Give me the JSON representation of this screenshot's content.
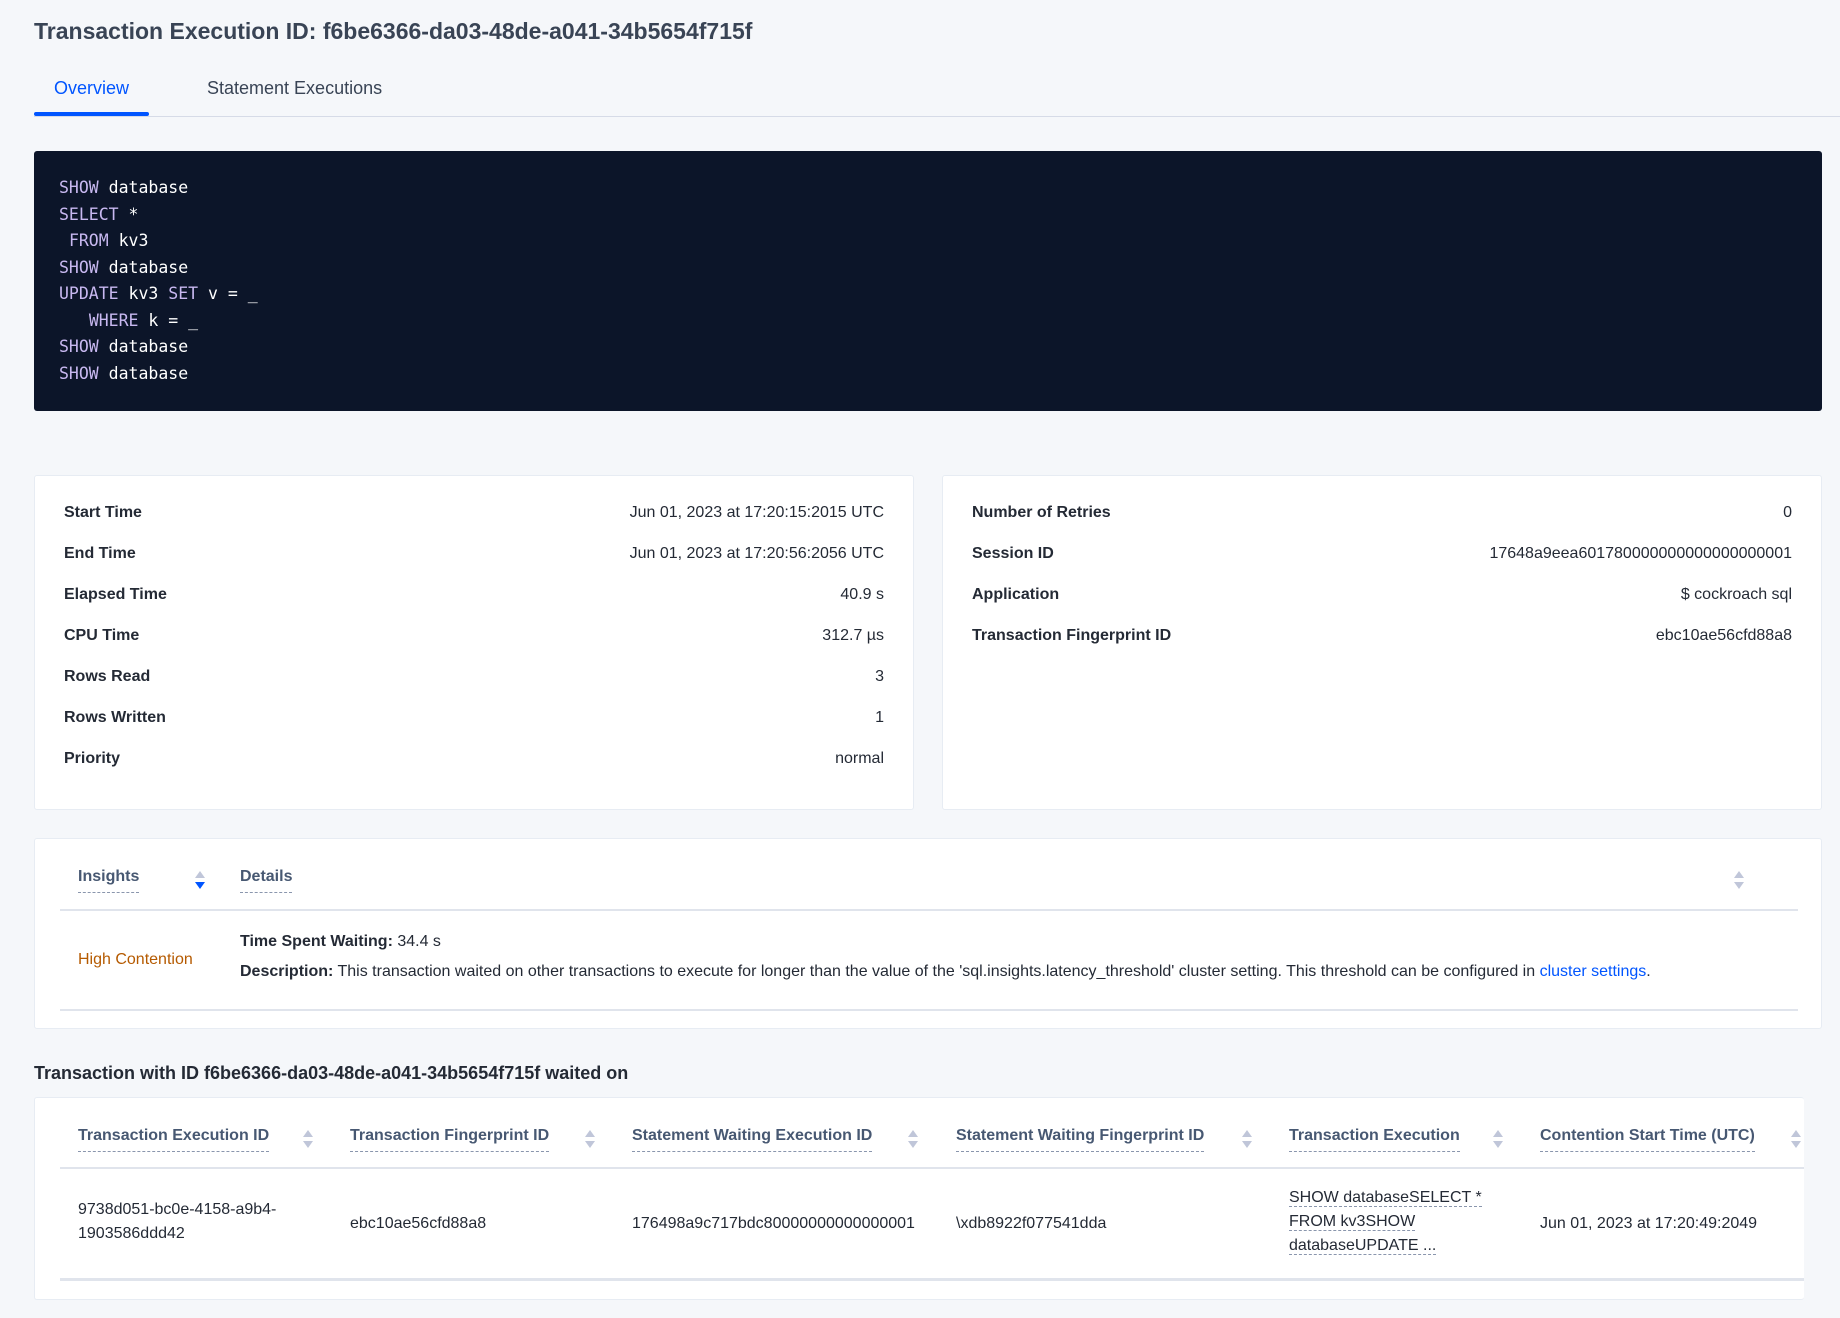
{
  "page": {
    "title": "Transaction Execution ID: f6be6366-da03-48de-a041-34b5654f715f"
  },
  "tabs": [
    {
      "label": "Overview",
      "active": true
    },
    {
      "label": "Statement Executions",
      "active": false
    }
  ],
  "code": {
    "lines": [
      [
        [
          "kw",
          "SHOW"
        ],
        [
          "t",
          " database"
        ]
      ],
      [
        [
          "kw",
          "SELECT"
        ],
        [
          "t",
          " *"
        ]
      ],
      [
        [
          "t",
          " "
        ],
        [
          "kw",
          "FROM"
        ],
        [
          "t",
          " kv3"
        ]
      ],
      [
        [
          "kw",
          "SHOW"
        ],
        [
          "t",
          " database"
        ]
      ],
      [
        [
          "kw",
          "UPDATE"
        ],
        [
          "t",
          " kv3 "
        ],
        [
          "kw",
          "SET"
        ],
        [
          "t",
          " v = _"
        ]
      ],
      [
        [
          "t",
          "   "
        ],
        [
          "kw",
          "WHERE"
        ],
        [
          "t",
          " k = _"
        ]
      ],
      [
        [
          "kw",
          "SHOW"
        ],
        [
          "t",
          " database"
        ]
      ],
      [
        [
          "kw",
          "SHOW"
        ],
        [
          "t",
          " database"
        ]
      ]
    ]
  },
  "summary_left": [
    {
      "label": "Start Time",
      "value": "Jun 01, 2023 at 17:20:15:2015 UTC"
    },
    {
      "label": "End Time",
      "value": "Jun 01, 2023 at 17:20:56:2056 UTC"
    },
    {
      "label": "Elapsed Time",
      "value": "40.9 s"
    },
    {
      "label": "CPU Time",
      "value": "312.7 µs"
    },
    {
      "label": "Rows Read",
      "value": "3"
    },
    {
      "label": "Rows Written",
      "value": "1"
    },
    {
      "label": "Priority",
      "value": "normal"
    }
  ],
  "summary_right": [
    {
      "label": "Number of Retries",
      "value": "0"
    },
    {
      "label": "Session ID",
      "value": "17648a9eea601780000000000000000001"
    },
    {
      "label": "Application",
      "value": "$ cockroach sql"
    },
    {
      "label": "Transaction Fingerprint ID",
      "value": "ebc10ae56cfd88a8",
      "link": true
    }
  ],
  "insights": {
    "headers": [
      "Insights",
      "Details"
    ],
    "row": {
      "insight": "High Contention",
      "insight_color": "#b55a00",
      "time_label": "Time Spent Waiting:",
      "time_value": " 34.4 s",
      "desc_label": "Description:",
      "desc_text": " This transaction waited on other transactions to execute for longer than the value of the 'sql.insights.latency_threshold' cluster setting. This threshold can be configured in ",
      "desc_link": "cluster settings",
      "desc_end": "."
    }
  },
  "waited": {
    "heading": "Transaction with ID f6be6366-da03-48de-a041-34b5654f715f waited on",
    "headers": [
      "Transaction Execution ID",
      "Transaction Fingerprint ID",
      "Statement Waiting Execution ID",
      "Statement Waiting Fingerprint ID",
      "Transaction Execution",
      "Contention Start Time (UTC)"
    ],
    "row": {
      "exec_id_1": "9738d051-bc0e-4158-a9b4-",
      "exec_id_2": "1903586ddd42",
      "fingerprint": "ebc10ae56cfd88a8",
      "stmt_exec_id": "176498a9c717bdc80000000000000001",
      "stmt_fingerprint": "\\xdb8922f077541dda",
      "txn_1": "SHOW databaseSELECT *",
      "txn_2": "FROM kv3SHOW",
      "txn_3": "databaseUPDATE ...",
      "start_time": "Jun 01, 2023 at 17:20:49:2049"
    }
  },
  "colors": {
    "accent": "#0055ff",
    "code_bg": "#0c1529",
    "warning": "#b55a00"
  }
}
